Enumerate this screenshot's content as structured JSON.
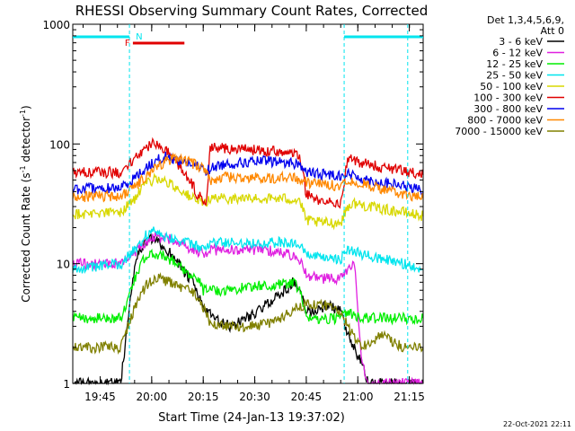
{
  "chart_data": {
    "type": "line",
    "title": "RHESSI Observing Summary Count Rates, Corrected",
    "xlabel": "Start Time (24-Jan-13 19:37:02)",
    "ylabel": "Corrected Count Rate (s",
    "ylabel_sup1": "-1",
    "ylabel_mid": " detector",
    "ylabel_sup2": "-1",
    "ylabel_end": ")",
    "footer": "22-Oct-2021 22:11",
    "yscale": "log",
    "ylim": [
      1,
      1000
    ],
    "xlim_minutes": [
      0,
      102
    ],
    "x_tick_labels": [
      {
        "label": "19:45",
        "minute": 7.97
      },
      {
        "label": "20:00",
        "minute": 22.97
      },
      {
        "label": "20:15",
        "minute": 37.97
      },
      {
        "label": "20:30",
        "minute": 52.97
      },
      {
        "label": "20:45",
        "minute": 67.97
      },
      {
        "label": "21:00",
        "minute": 82.97
      },
      {
        "label": "21:15",
        "minute": 97.97
      }
    ],
    "y_tick_labels": [
      {
        "label": "1",
        "value": 1
      },
      {
        "label": "10",
        "value": 10
      },
      {
        "label": "100",
        "value": 100
      },
      {
        "label": "1000",
        "value": 1000
      }
    ],
    "legend_header": [
      "Det 1,3,4,5,6,9,",
      "Att 0"
    ],
    "flags": {
      "night_label": "N",
      "flare_label": "F",
      "night_intervals": [
        [
          0,
          16.5
        ],
        [
          79,
          102
        ]
      ],
      "flare_intervals": [
        [
          17.5,
          32.5
        ]
      ],
      "night_boundaries": [
        16.5,
        79,
        97.5
      ],
      "night_color": "#00e5ee",
      "flare_color": "#e00000"
    },
    "series": [
      {
        "name": "3 - 6 keV",
        "color": "#000000",
        "points": [
          [
            0,
            1
          ],
          [
            14,
            1
          ],
          [
            15.5,
            2.5
          ],
          [
            17.5,
            8
          ],
          [
            19,
            12
          ],
          [
            21,
            15
          ],
          [
            23,
            16
          ],
          [
            25,
            15
          ],
          [
            27,
            13
          ],
          [
            29,
            12
          ],
          [
            31,
            10
          ],
          [
            33,
            8
          ],
          [
            35,
            7
          ],
          [
            37,
            5
          ],
          [
            39,
            4
          ],
          [
            41,
            3.5
          ],
          [
            43,
            3.2
          ],
          [
            46,
            3
          ],
          [
            50,
            3.5
          ],
          [
            54,
            4
          ],
          [
            58,
            5
          ],
          [
            62,
            6
          ],
          [
            64,
            7
          ],
          [
            66,
            6
          ],
          [
            68,
            4
          ],
          [
            70,
            4
          ],
          [
            74,
            4.5
          ],
          [
            78,
            4
          ],
          [
            80,
            2.5
          ],
          [
            84,
            1.5
          ],
          [
            86,
            1
          ],
          [
            102,
            1
          ]
        ]
      },
      {
        "name": "6 - 12 keV",
        "color": "#e020e0",
        "points": [
          [
            0,
            10
          ],
          [
            14,
            10
          ],
          [
            18,
            12
          ],
          [
            21,
            15
          ],
          [
            24,
            17
          ],
          [
            27,
            16
          ],
          [
            30,
            16
          ],
          [
            33,
            14
          ],
          [
            36,
            13
          ],
          [
            38,
            12
          ],
          [
            40,
            13
          ],
          [
            45,
            13
          ],
          [
            52,
            13
          ],
          [
            57,
            13
          ],
          [
            63,
            12
          ],
          [
            66,
            11
          ],
          [
            68,
            8
          ],
          [
            72,
            7.5
          ],
          [
            78,
            7.5
          ],
          [
            80,
            9
          ],
          [
            82,
            10
          ],
          [
            84,
            1.5
          ],
          [
            86,
            1
          ],
          [
            102,
            1
          ]
        ]
      },
      {
        "name": "12 - 25 keV",
        "color": "#00ee00",
        "points": [
          [
            0,
            3.5
          ],
          [
            14,
            3.5
          ],
          [
            16,
            5
          ],
          [
            19,
            9
          ],
          [
            21,
            11
          ],
          [
            23,
            12
          ],
          [
            25,
            12
          ],
          [
            28,
            11
          ],
          [
            31,
            10
          ],
          [
            34,
            8
          ],
          [
            37,
            7
          ],
          [
            38,
            6
          ],
          [
            40,
            6
          ],
          [
            45,
            6
          ],
          [
            52,
            6.5
          ],
          [
            58,
            6.5
          ],
          [
            64,
            7
          ],
          [
            66,
            6
          ],
          [
            68,
            3.5
          ],
          [
            78,
            3.5
          ],
          [
            80,
            4
          ],
          [
            84,
            3.5
          ],
          [
            92,
            3.5
          ],
          [
            102,
            3.5
          ]
        ]
      },
      {
        "name": "25 - 50 keV",
        "color": "#00e5ee",
        "points": [
          [
            0,
            9
          ],
          [
            14,
            10
          ],
          [
            18,
            13
          ],
          [
            21,
            17
          ],
          [
            24,
            19
          ],
          [
            27,
            17
          ],
          [
            30,
            16
          ],
          [
            33,
            15
          ],
          [
            36,
            14
          ],
          [
            38,
            13
          ],
          [
            40,
            15
          ],
          [
            46,
            15
          ],
          [
            52,
            15
          ],
          [
            58,
            15
          ],
          [
            64,
            15
          ],
          [
            66,
            14
          ],
          [
            68,
            12
          ],
          [
            72,
            11
          ],
          [
            78,
            11
          ],
          [
            80,
            13
          ],
          [
            84,
            12
          ],
          [
            90,
            11
          ],
          [
            96,
            10
          ],
          [
            102,
            9
          ]
        ]
      },
      {
        "name": "50 - 100 keV",
        "color": "#d8d800",
        "points": [
          [
            0,
            26
          ],
          [
            14,
            27
          ],
          [
            18,
            35
          ],
          [
            21,
            45
          ],
          [
            24,
            52
          ],
          [
            26,
            50
          ],
          [
            29,
            45
          ],
          [
            31,
            42
          ],
          [
            33,
            38
          ],
          [
            35,
            35
          ],
          [
            37,
            33
          ],
          [
            38,
            32
          ],
          [
            40,
            35
          ],
          [
            44,
            35
          ],
          [
            50,
            35
          ],
          [
            56,
            35
          ],
          [
            62,
            35
          ],
          [
            66,
            34
          ],
          [
            68,
            23
          ],
          [
            72,
            22
          ],
          [
            78,
            22
          ],
          [
            80,
            30
          ],
          [
            82,
            32
          ],
          [
            86,
            30
          ],
          [
            92,
            28
          ],
          [
            96,
            27
          ],
          [
            102,
            25
          ]
        ]
      },
      {
        "name": "100 - 300 keV",
        "color": "#e00000",
        "points": [
          [
            0,
            58
          ],
          [
            14,
            58
          ],
          [
            18,
            75
          ],
          [
            21,
            90
          ],
          [
            23,
            100
          ],
          [
            25,
            97
          ],
          [
            27,
            92
          ],
          [
            29,
            80
          ],
          [
            31,
            65
          ],
          [
            33,
            55
          ],
          [
            35,
            45
          ],
          [
            36,
            38
          ],
          [
            38,
            34
          ],
          [
            39,
            33
          ],
          [
            40,
            95
          ],
          [
            44,
            92
          ],
          [
            50,
            90
          ],
          [
            56,
            88
          ],
          [
            62,
            85
          ],
          [
            66,
            82
          ],
          [
            68,
            38
          ],
          [
            72,
            33
          ],
          [
            78,
            32
          ],
          [
            80,
            75
          ],
          [
            82,
            72
          ],
          [
            86,
            68
          ],
          [
            92,
            62
          ],
          [
            96,
            60
          ],
          [
            102,
            55
          ]
        ]
      },
      {
        "name": "300 - 800 keV",
        "color": "#0000ee",
        "points": [
          [
            0,
            42
          ],
          [
            14,
            43
          ],
          [
            18,
            52
          ],
          [
            21,
            62
          ],
          [
            24,
            72
          ],
          [
            27,
            78
          ],
          [
            30,
            75
          ],
          [
            33,
            70
          ],
          [
            36,
            65
          ],
          [
            39,
            60
          ],
          [
            40,
            62
          ],
          [
            44,
            68
          ],
          [
            50,
            70
          ],
          [
            56,
            72
          ],
          [
            62,
            70
          ],
          [
            66,
            68
          ],
          [
            68,
            58
          ],
          [
            72,
            56
          ],
          [
            78,
            55
          ],
          [
            80,
            56
          ],
          [
            84,
            52
          ],
          [
            90,
            47
          ],
          [
            96,
            45
          ],
          [
            102,
            40
          ]
        ]
      },
      {
        "name": "800 - 7000 keV",
        "color": "#ff8800",
        "points": [
          [
            0,
            36
          ],
          [
            14,
            37
          ],
          [
            18,
            43
          ],
          [
            21,
            53
          ],
          [
            24,
            62
          ],
          [
            27,
            72
          ],
          [
            30,
            76
          ],
          [
            33,
            73
          ],
          [
            36,
            66
          ],
          [
            39,
            60
          ],
          [
            40,
            50
          ],
          [
            44,
            53
          ],
          [
            50,
            52
          ],
          [
            56,
            52
          ],
          [
            62,
            52
          ],
          [
            66,
            51
          ],
          [
            68,
            48
          ],
          [
            72,
            46
          ],
          [
            78,
            45
          ],
          [
            80,
            50
          ],
          [
            84,
            47
          ],
          [
            90,
            42
          ],
          [
            96,
            38
          ],
          [
            102,
            35
          ]
        ]
      },
      {
        "name": "7000 - 15000 keV",
        "color": "#808000",
        "points": [
          [
            0,
            2
          ],
          [
            14,
            2
          ],
          [
            16,
            3
          ],
          [
            19,
            5
          ],
          [
            22,
            7
          ],
          [
            25,
            7.5
          ],
          [
            28,
            7
          ],
          [
            31,
            6.5
          ],
          [
            34,
            6
          ],
          [
            37,
            5
          ],
          [
            40,
            3.2
          ],
          [
            46,
            3
          ],
          [
            52,
            3
          ],
          [
            58,
            3.2
          ],
          [
            64,
            4
          ],
          [
            66,
            4.5
          ],
          [
            68,
            4.5
          ],
          [
            74,
            4.5
          ],
          [
            78,
            4
          ],
          [
            80,
            3
          ],
          [
            84,
            2
          ],
          [
            90,
            2.5
          ],
          [
            96,
            2
          ],
          [
            102,
            2
          ]
        ]
      }
    ]
  }
}
